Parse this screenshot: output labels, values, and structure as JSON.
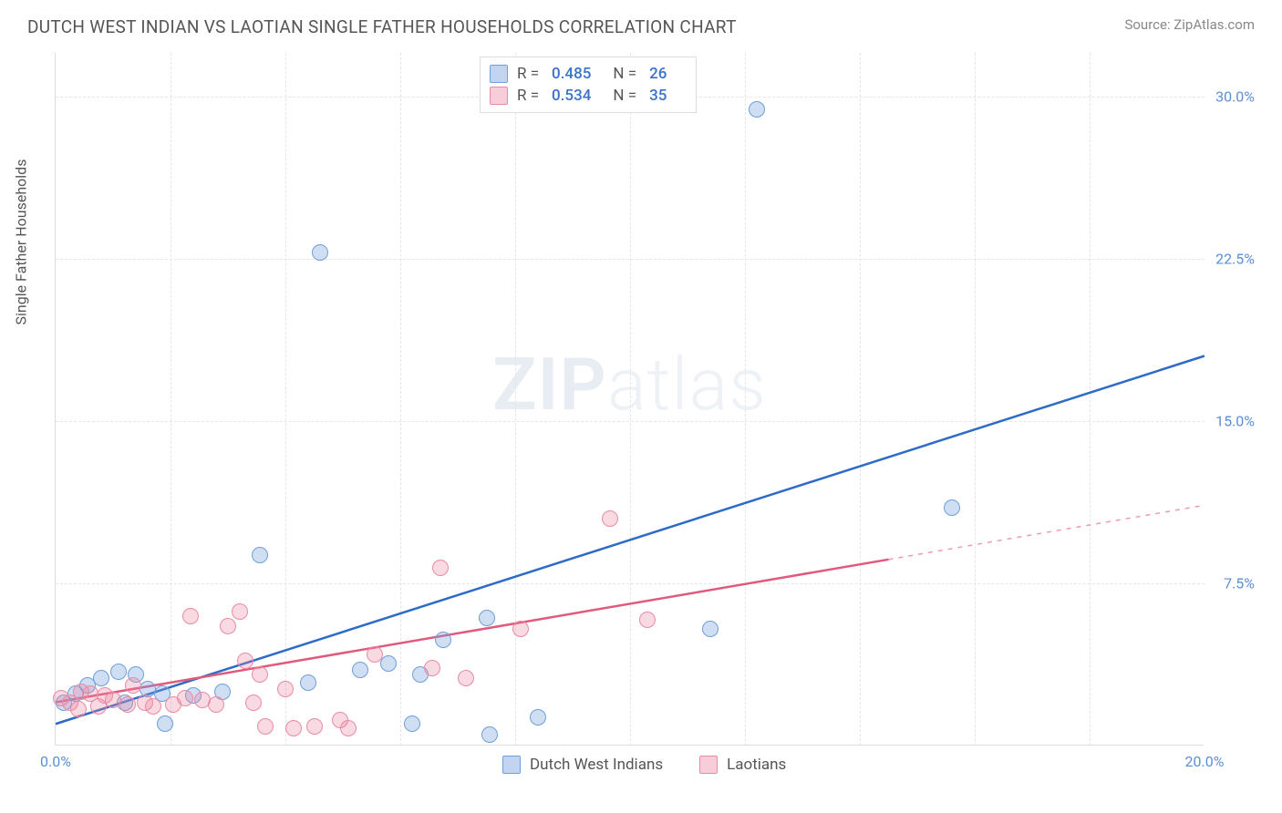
{
  "header": {
    "title": "DUTCH WEST INDIAN VS LAOTIAN SINGLE FATHER HOUSEHOLDS CORRELATION CHART",
    "source": "Source: ZipAtlas.com"
  },
  "watermark": {
    "zip": "ZIP",
    "atlas": "atlas"
  },
  "chart": {
    "type": "scatter",
    "ylabel": "Single Father Households",
    "background_color": "#ffffff",
    "grid_color": "#e5e5e5",
    "axis_color": "#dddddd",
    "tick_color": "#5b8fd6",
    "xlim": [
      0,
      20
    ],
    "ylim": [
      0,
      32
    ],
    "yticks": [
      7.5,
      15.0,
      22.5,
      30.0
    ],
    "ytick_labels": [
      "7.5%",
      "15.0%",
      "22.5%",
      "30.0%"
    ],
    "xticks": [
      0,
      20
    ],
    "xtick_labels": [
      "0.0%",
      "20.0%"
    ],
    "grid_x_positions": [
      2,
      4,
      6,
      8,
      10,
      12,
      14,
      16,
      18
    ],
    "marker_radius": 9,
    "marker_border_width": 1.5,
    "trend_line_width": 2.5,
    "series": [
      {
        "name": "Dutch West Indians",
        "fill_color": "rgba(120,160,220,0.35)",
        "stroke_color": "#6e9fd8",
        "line_color": "#2e6bc7",
        "R": "0.485",
        "N": "26",
        "trend": {
          "x1": 0,
          "y1": 1.0,
          "x2": 20,
          "y2": 18.0
        },
        "trend_dash_from_x": 20,
        "points": [
          {
            "x": 0.15,
            "y": 2.0
          },
          {
            "x": 0.35,
            "y": 2.4
          },
          {
            "x": 0.55,
            "y": 2.8
          },
          {
            "x": 0.8,
            "y": 3.1
          },
          {
            "x": 1.1,
            "y": 3.4
          },
          {
            "x": 1.2,
            "y": 2.0
          },
          {
            "x": 1.4,
            "y": 3.3
          },
          {
            "x": 1.6,
            "y": 2.6
          },
          {
            "x": 1.85,
            "y": 2.4
          },
          {
            "x": 1.9,
            "y": 1.0
          },
          {
            "x": 2.4,
            "y": 2.3
          },
          {
            "x": 2.9,
            "y": 2.5
          },
          {
            "x": 3.55,
            "y": 8.8
          },
          {
            "x": 4.4,
            "y": 2.9
          },
          {
            "x": 4.6,
            "y": 22.8
          },
          {
            "x": 5.3,
            "y": 3.5
          },
          {
            "x": 5.8,
            "y": 3.8
          },
          {
            "x": 6.2,
            "y": 1.0
          },
          {
            "x": 6.35,
            "y": 3.3
          },
          {
            "x": 6.75,
            "y": 4.9
          },
          {
            "x": 7.5,
            "y": 5.9
          },
          {
            "x": 7.55,
            "y": 0.5
          },
          {
            "x": 8.4,
            "y": 1.3
          },
          {
            "x": 12.2,
            "y": 29.4
          },
          {
            "x": 15.6,
            "y": 11.0
          },
          {
            "x": 11.4,
            "y": 5.4
          }
        ]
      },
      {
        "name": "Laotians",
        "fill_color": "rgba(235,130,160,0.30)",
        "stroke_color": "#e98ba5",
        "line_color": "#e05a7e",
        "R": "0.534",
        "N": "35",
        "trend": {
          "x1": 0,
          "y1": 2.0,
          "x2": 20,
          "y2": 11.1
        },
        "trend_dash_from_x": 14.5,
        "points": [
          {
            "x": 0.1,
            "y": 2.2
          },
          {
            "x": 0.25,
            "y": 2.0
          },
          {
            "x": 0.4,
            "y": 1.7
          },
          {
            "x": 0.45,
            "y": 2.5
          },
          {
            "x": 0.6,
            "y": 2.4
          },
          {
            "x": 0.75,
            "y": 1.8
          },
          {
            "x": 0.85,
            "y": 2.3
          },
          {
            "x": 1.0,
            "y": 2.1
          },
          {
            "x": 1.25,
            "y": 1.9
          },
          {
            "x": 1.35,
            "y": 2.8
          },
          {
            "x": 1.55,
            "y": 2.0
          },
          {
            "x": 1.7,
            "y": 1.8
          },
          {
            "x": 2.05,
            "y": 1.9
          },
          {
            "x": 2.25,
            "y": 2.2
          },
          {
            "x": 2.35,
            "y": 6.0
          },
          {
            "x": 2.55,
            "y": 2.1
          },
          {
            "x": 2.8,
            "y": 1.9
          },
          {
            "x": 3.0,
            "y": 5.5
          },
          {
            "x": 3.2,
            "y": 6.2
          },
          {
            "x": 3.3,
            "y": 3.9
          },
          {
            "x": 3.45,
            "y": 2.0
          },
          {
            "x": 3.55,
            "y": 3.3
          },
          {
            "x": 3.65,
            "y": 0.9
          },
          {
            "x": 4.0,
            "y": 2.6
          },
          {
            "x": 4.15,
            "y": 0.8
          },
          {
            "x": 4.5,
            "y": 0.9
          },
          {
            "x": 4.95,
            "y": 1.2
          },
          {
            "x": 5.1,
            "y": 0.8
          },
          {
            "x": 5.55,
            "y": 4.2
          },
          {
            "x": 6.55,
            "y": 3.6
          },
          {
            "x": 6.7,
            "y": 8.2
          },
          {
            "x": 7.15,
            "y": 3.1
          },
          {
            "x": 8.1,
            "y": 5.4
          },
          {
            "x": 9.65,
            "y": 10.5
          },
          {
            "x": 10.3,
            "y": 5.8
          }
        ]
      }
    ]
  },
  "legend": {
    "items": [
      {
        "label": "Dutch West Indians",
        "swatch_fill": "rgba(120,160,220,0.45)",
        "swatch_stroke": "#6e9fd8"
      },
      {
        "label": "Laotians",
        "swatch_fill": "rgba(235,130,160,0.40)",
        "swatch_stroke": "#e98ba5"
      }
    ]
  }
}
